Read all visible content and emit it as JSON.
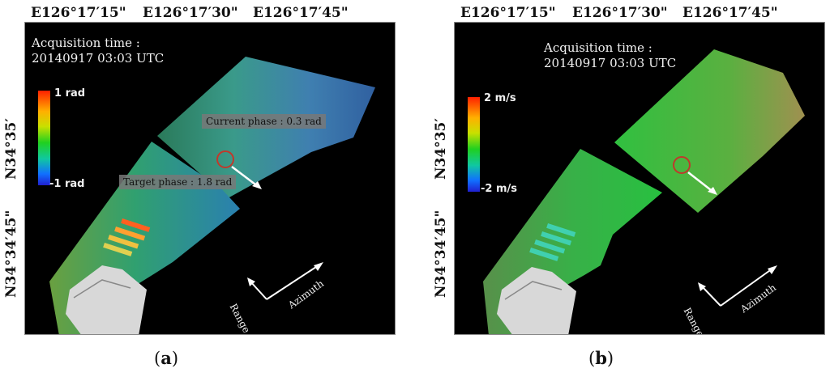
{
  "panels": [
    {
      "id": "a",
      "caption_open": "(",
      "caption_letter": "a",
      "caption_close": ")",
      "lon_labels": [
        "E126°17′15\"",
        "E126°17′30\"",
        "E126°17′45\""
      ],
      "lat_labels": [
        "N34°35′",
        "N34°34′45\""
      ],
      "acquisition_label": "Acquisition time :",
      "acquisition_value": "20140917 03:03 UTC",
      "colorbar": {
        "max": "1 rad",
        "min": "-1 rad"
      },
      "annotations": {
        "current_phase": "Current phase : 0.3 rad",
        "target_phase": "Target phase : 1.8 rad"
      },
      "directions": {
        "range": "Range",
        "azimuth": "Azimuth"
      }
    },
    {
      "id": "b",
      "caption_open": "(",
      "caption_letter": "b",
      "caption_close": ")",
      "lon_labels": [
        "E126°17′15\"",
        "E126°17′30\"",
        "E126°17′45\""
      ],
      "lat_labels": [
        "N34°35′",
        "N34°34′45\""
      ],
      "acquisition_label": "Acquisition time :",
      "acquisition_value": "20140917 03:03 UTC",
      "colorbar": {
        "max": "2 m/s",
        "min": "-2 m/s"
      },
      "directions": {
        "range": "Range",
        "azimuth": "Azimuth"
      }
    }
  ],
  "colors": {
    "background": "#000000",
    "marker_circle": "#c0392b",
    "arrow": "#ffffff"
  }
}
